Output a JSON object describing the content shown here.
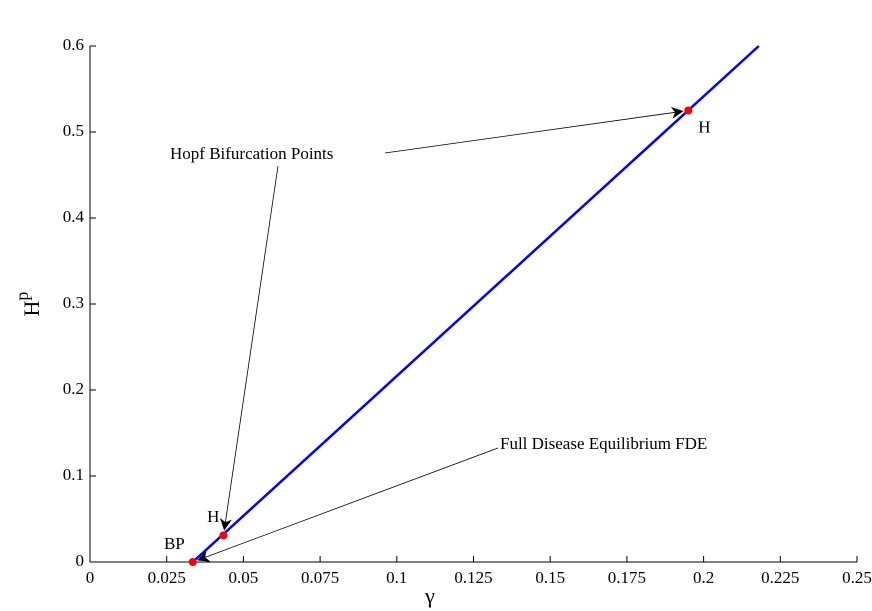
{
  "chart_data": {
    "type": "line",
    "x_label": "γ",
    "y_label": {
      "text": "H",
      "subscript": "p"
    },
    "xlim": [
      0,
      0.25
    ],
    "ylim": [
      0,
      0.6
    ],
    "xticks": [
      0,
      0.025,
      0.05,
      0.075,
      0.1,
      0.125,
      0.15,
      0.175,
      0.2,
      0.225,
      0.25
    ],
    "yticks": [
      0,
      0.1,
      0.2,
      0.3,
      0.4,
      0.5,
      0.6
    ],
    "series": [
      {
        "color": "#0000ff",
        "x": [
          0.0335,
          0.218
        ],
        "values": [
          0,
          0.6
        ]
      }
    ],
    "points": {
      "color": "#ff0000",
      "x": [
        0.0335,
        0.0435,
        0.195
      ],
      "values": [
        0,
        0.031,
        0.525
      ],
      "labels": [
        "BP",
        "H",
        "H"
      ]
    },
    "annotations": [
      {
        "text": "Hopf Bifurcation Points",
        "targets": [
          2,
          1
        ]
      },
      {
        "text": "Full Disease Equilibrium FDE",
        "targets": [
          0
        ]
      }
    ]
  }
}
